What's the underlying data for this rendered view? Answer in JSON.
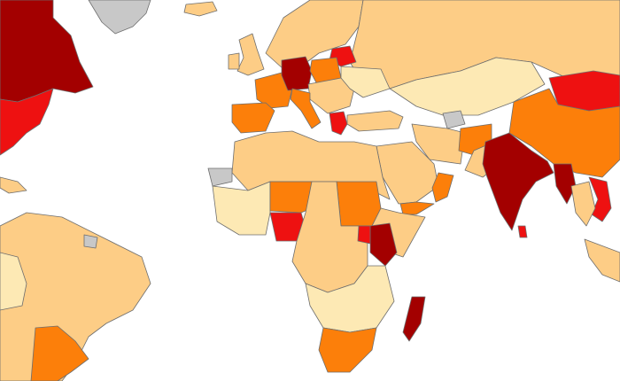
{
  "map": {
    "palette": {
      "lightest": "#fde9b4",
      "light": "#fdcd86",
      "medium": "#fc7f0a",
      "high": "#ee1111",
      "highest": "#a30000",
      "no_data": "#c8c8c8"
    }
  }
}
